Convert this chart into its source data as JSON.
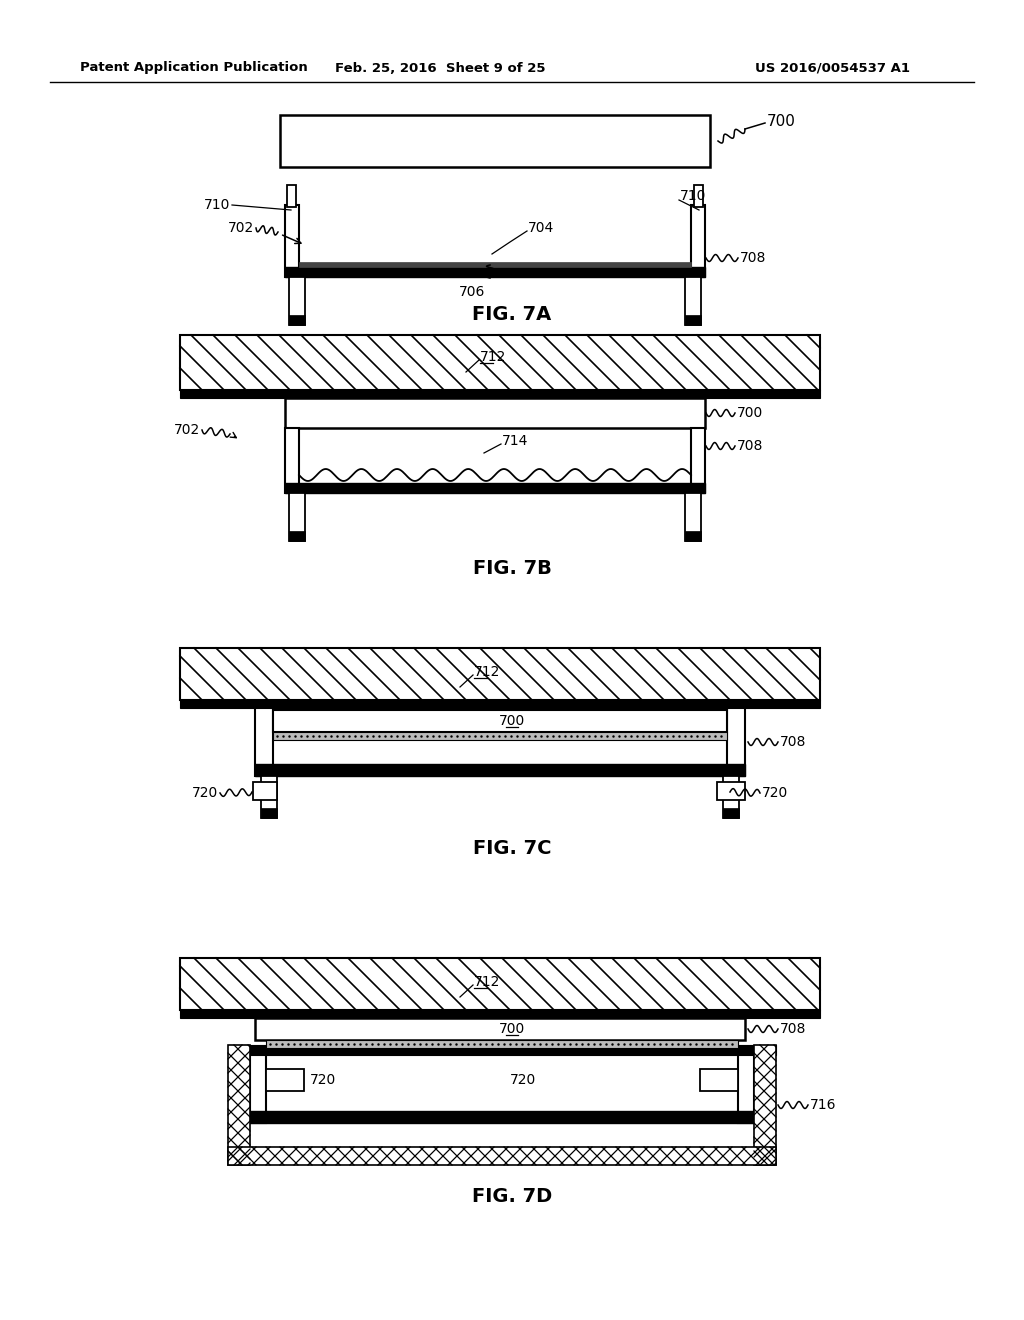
{
  "page_header_left": "Patent Application Publication",
  "page_header_mid": "Feb. 25, 2016  Sheet 9 of 25",
  "page_header_right": "US 2016/0054537 A1",
  "bg_color": "#ffffff",
  "fig7a_label": "FIG. 7A",
  "fig7b_label": "FIG. 7B",
  "fig7c_label": "FIG. 7C",
  "fig7d_label": "FIG. 7D"
}
